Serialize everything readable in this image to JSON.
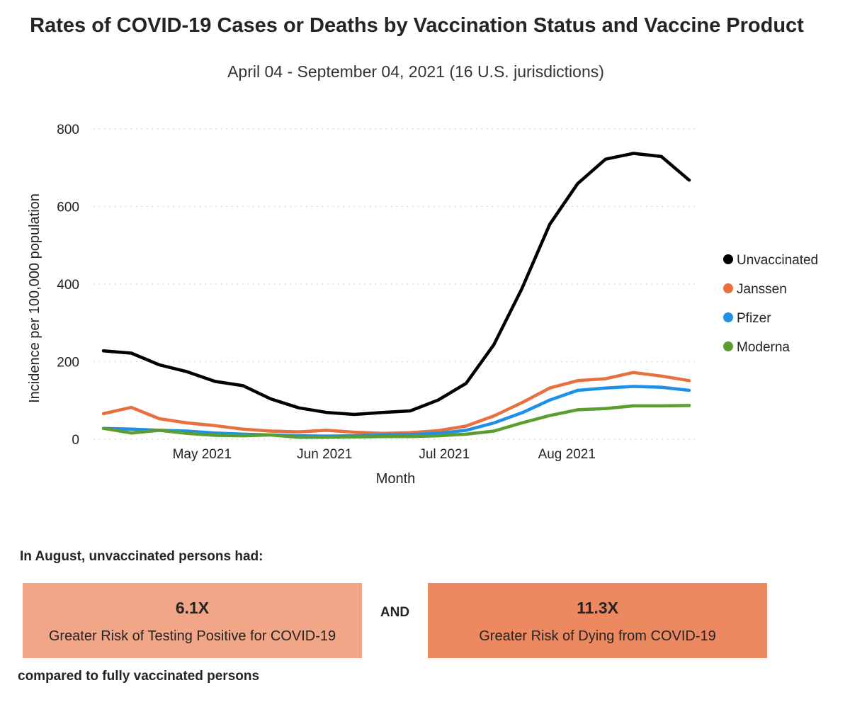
{
  "header": {
    "title": "Rates of COVID-19 Cases or Deaths by Vaccination Status and Vaccine Product",
    "subtitle": "April 04 - September 04, 2021 (16 U.S. jurisdictions)"
  },
  "chart_data": {
    "type": "line",
    "title": "Rates of COVID-19 Cases or Deaths by Vaccination Status and Vaccine Product",
    "subtitle": "April 04 - September 04, 2021 (16 U.S. jurisdictions)",
    "xlabel": "Month",
    "ylabel": "Incidence per 100,000 population",
    "ylim": [
      0,
      800
    ],
    "yticks": [
      0,
      200,
      400,
      600,
      800
    ],
    "xlim": [
      0,
      21.7
    ],
    "x_ticks": [
      {
        "label": "May 2021",
        "pos": 3.9
      },
      {
        "label": "Jun 2021",
        "pos": 8.3
      },
      {
        "label": "Jul 2021",
        "pos": 12.6
      },
      {
        "label": "Aug 2021",
        "pos": 17.0
      }
    ],
    "grid": "horizontal dotted",
    "legend_position": "right",
    "x": [
      0,
      1,
      2,
      3,
      4,
      5,
      6,
      7,
      8,
      9,
      10,
      11,
      12,
      13,
      14,
      15,
      16,
      17,
      18,
      19,
      20,
      21
    ],
    "series": [
      {
        "name": "Unvaccinated",
        "color": "#000000",
        "values": [
          228,
          222,
          192,
          174,
          149,
          138,
          104,
          81,
          69,
          64,
          69,
          73,
          101,
          144,
          244,
          388,
          554,
          659,
          722,
          737,
          729,
          668
        ]
      },
      {
        "name": "Janssen",
        "color": "#e8703f",
        "values": [
          66,
          82,
          53,
          42,
          35,
          26,
          21,
          19,
          23,
          18,
          15,
          17,
          22,
          34,
          60,
          94,
          132,
          151,
          156,
          172,
          163,
          151
        ]
      },
      {
        "name": "Pfizer",
        "color": "#1e90e8",
        "values": [
          28,
          26,
          23,
          21,
          16,
          13,
          11,
          9,
          8,
          9,
          11,
          12,
          15,
          23,
          42,
          68,
          101,
          126,
          132,
          136,
          134,
          126
        ]
      },
      {
        "name": "Moderna",
        "color": "#5a9e2f",
        "values": [
          28,
          16,
          23,
          15,
          10,
          9,
          11,
          5,
          5,
          6,
          7,
          7,
          9,
          13,
          21,
          42,
          61,
          76,
          79,
          86,
          86,
          87
        ]
      }
    ]
  },
  "summary": {
    "intro": "In August, unvaccinated persons had:",
    "cards": [
      {
        "value": "6.1X",
        "label": "Greater Risk of Testing Positive for COVID-19",
        "color": "#f2a688"
      },
      {
        "value": "11.3X",
        "label": "Greater Risk of Dying from COVID-19",
        "color": "#ec8960"
      }
    ],
    "connector": "AND",
    "footnote": "compared to fully vaccinated persons"
  }
}
